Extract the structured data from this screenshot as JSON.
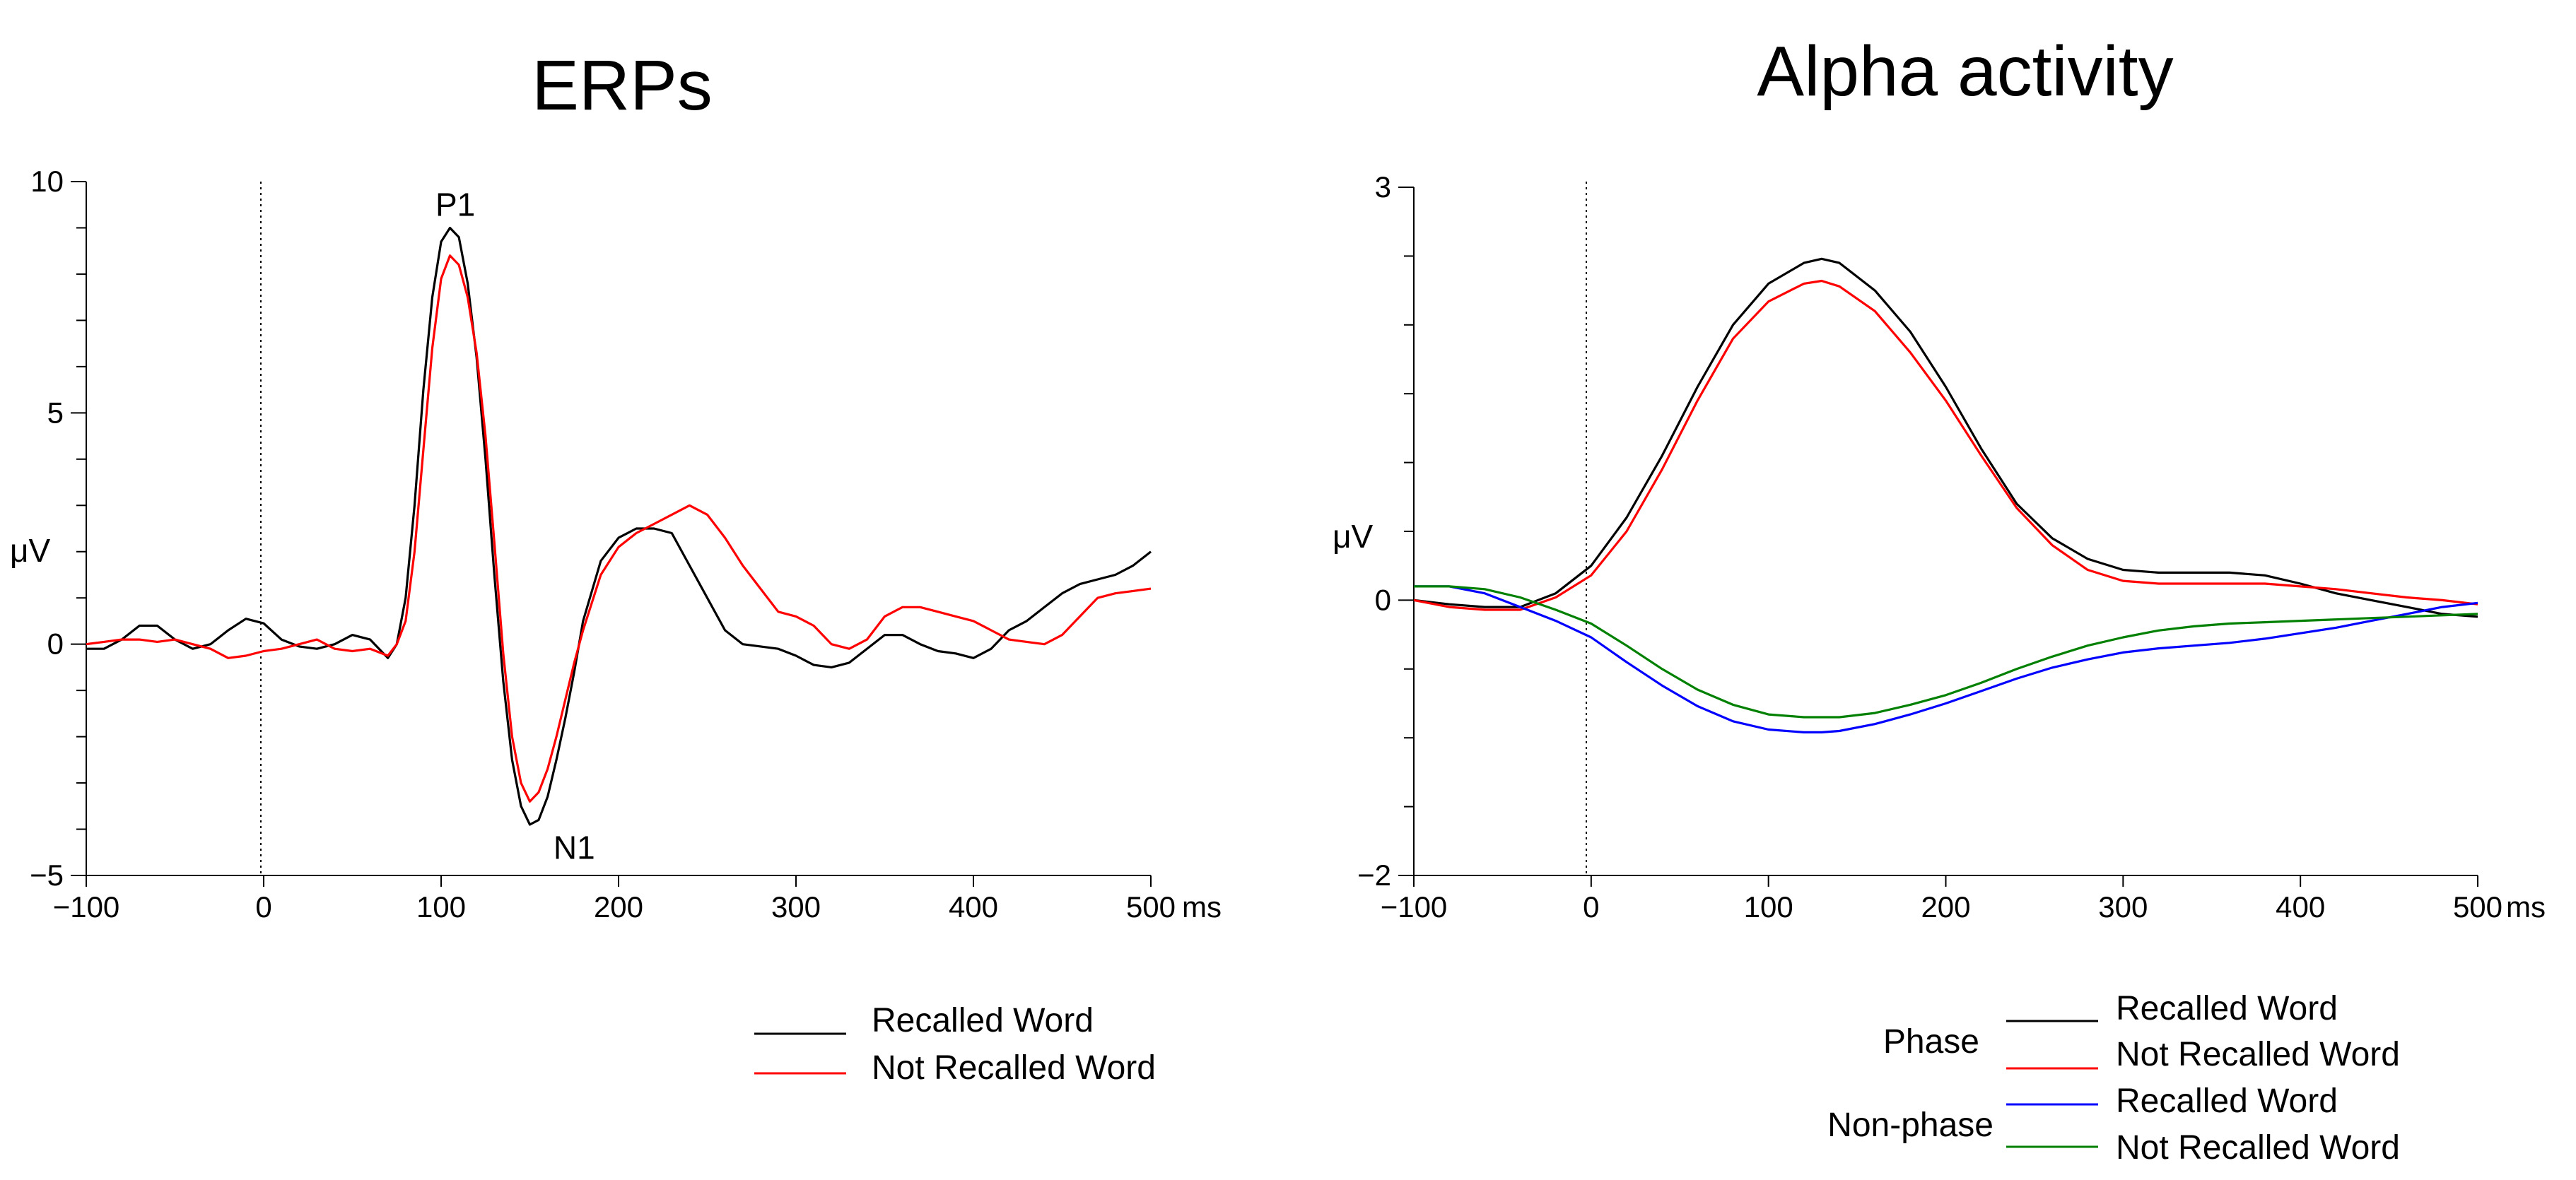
{
  "chart_data": [
    {
      "type": "line",
      "title": "ERPs",
      "ylabel": "μV",
      "x_unit": "ms",
      "xlim": [
        -100,
        500
      ],
      "ylim": [
        -5,
        10
      ],
      "x_ticks": [
        -100,
        0,
        100,
        200,
        300,
        400,
        500
      ],
      "x_tick_labels": [
        "−100",
        "0",
        "100",
        "200",
        "300",
        "400",
        "500"
      ],
      "y_ticks": [
        -5,
        0,
        5,
        10
      ],
      "y_tick_labels": [
        "−5",
        "0",
        "5",
        "10"
      ],
      "onset_line_x": 0,
      "annotations": [
        {
          "text": "P1",
          "x": 108,
          "y": 9.5
        },
        {
          "text": "N1",
          "x": 175,
          "y": -4.4
        }
      ],
      "legend_position": "bottom-center",
      "series": [
        {
          "name": "Recalled Word",
          "color": "#000000",
          "x": [
            -100,
            -90,
            -80,
            -70,
            -60,
            -50,
            -40,
            -30,
            -20,
            -10,
            0,
            10,
            20,
            30,
            40,
            50,
            60,
            70,
            75,
            80,
            85,
            90,
            95,
            100,
            105,
            110,
            115,
            120,
            125,
            130,
            135,
            140,
            145,
            150,
            155,
            160,
            165,
            170,
            175,
            180,
            190,
            200,
            210,
            220,
            230,
            240,
            250,
            260,
            270,
            280,
            290,
            300,
            310,
            320,
            330,
            340,
            350,
            360,
            370,
            380,
            390,
            400,
            410,
            420,
            430,
            440,
            450,
            460,
            470,
            480,
            490,
            500
          ],
          "y": [
            -0.1,
            -0.1,
            0.1,
            0.4,
            0.4,
            0.1,
            -0.1,
            0.0,
            0.3,
            0.55,
            0.45,
            0.1,
            -0.05,
            -0.1,
            0.0,
            0.2,
            0.1,
            -0.3,
            0.0,
            1.0,
            3.0,
            5.5,
            7.5,
            8.7,
            9.0,
            8.8,
            7.8,
            6.2,
            4.0,
            1.5,
            -0.8,
            -2.5,
            -3.5,
            -3.9,
            -3.8,
            -3.3,
            -2.5,
            -1.6,
            -0.6,
            0.5,
            1.8,
            2.3,
            2.5,
            2.5,
            2.4,
            1.7,
            1.0,
            0.3,
            0.0,
            -0.05,
            -0.1,
            -0.25,
            -0.45,
            -0.5,
            -0.4,
            -0.1,
            0.2,
            0.2,
            0.0,
            -0.15,
            -0.2,
            -0.3,
            -0.1,
            0.3,
            0.5,
            0.8,
            1.1,
            1.3,
            1.4,
            1.5,
            1.7,
            2.0
          ]
        },
        {
          "name": "Not Recalled Word",
          "color": "#ff0000",
          "x": [
            -100,
            -90,
            -80,
            -70,
            -60,
            -50,
            -40,
            -30,
            -20,
            -10,
            0,
            10,
            20,
            30,
            40,
            50,
            60,
            70,
            75,
            80,
            85,
            90,
            95,
            100,
            105,
            110,
            115,
            120,
            125,
            130,
            135,
            140,
            145,
            150,
            155,
            160,
            165,
            170,
            175,
            180,
            190,
            200,
            210,
            220,
            230,
            240,
            250,
            260,
            270,
            280,
            290,
            300,
            310,
            320,
            330,
            340,
            350,
            360,
            370,
            380,
            390,
            400,
            410,
            420,
            430,
            440,
            450,
            460,
            470,
            480,
            490,
            500
          ],
          "y": [
            0.0,
            0.05,
            0.1,
            0.1,
            0.05,
            0.1,
            0.0,
            -0.1,
            -0.3,
            -0.25,
            -0.15,
            -0.1,
            0.0,
            0.1,
            -0.1,
            -0.15,
            -0.1,
            -0.25,
            0.0,
            0.5,
            2.0,
            4.2,
            6.4,
            7.9,
            8.4,
            8.2,
            7.5,
            6.3,
            4.5,
            2.2,
            -0.2,
            -2.0,
            -3.0,
            -3.4,
            -3.2,
            -2.7,
            -2.0,
            -1.2,
            -0.4,
            0.3,
            1.5,
            2.1,
            2.4,
            2.6,
            2.8,
            3.0,
            2.8,
            2.3,
            1.7,
            1.2,
            0.7,
            0.6,
            0.4,
            0.0,
            -0.1,
            0.1,
            0.6,
            0.8,
            0.8,
            0.7,
            0.6,
            0.5,
            0.3,
            0.1,
            0.05,
            0.0,
            0.2,
            0.6,
            1.0,
            1.1,
            1.15,
            1.2
          ]
        }
      ]
    },
    {
      "type": "line",
      "title": "Alpha activity",
      "ylabel": "μV",
      "x_unit": "ms",
      "xlim": [
        -100,
        500
      ],
      "ylim": [
        -2,
        3
      ],
      "x_ticks": [
        -100,
        0,
        100,
        200,
        300,
        400,
        500
      ],
      "x_tick_labels": [
        "−100",
        "0",
        "100",
        "200",
        "300",
        "400",
        "500"
      ],
      "y_ticks": [
        -2,
        0,
        3
      ],
      "y_tick_labels": [
        "−2",
        "0",
        "3"
      ],
      "onset_line_x": 0,
      "legend_position": "bottom-right",
      "legend_groups": [
        "Phase",
        "Non-phase"
      ],
      "series": [
        {
          "name": "Recalled Word",
          "group": "Phase",
          "color": "#000000",
          "x": [
            -100,
            -80,
            -60,
            -40,
            -20,
            0,
            20,
            40,
            60,
            80,
            100,
            120,
            130,
            140,
            160,
            180,
            200,
            220,
            240,
            260,
            280,
            300,
            320,
            340,
            360,
            380,
            400,
            420,
            440,
            460,
            480,
            500
          ],
          "y": [
            0.0,
            -0.03,
            -0.05,
            -0.05,
            0.05,
            0.25,
            0.6,
            1.05,
            1.55,
            2.0,
            2.3,
            2.45,
            2.48,
            2.45,
            2.25,
            1.95,
            1.55,
            1.1,
            0.7,
            0.45,
            0.3,
            0.22,
            0.2,
            0.2,
            0.2,
            0.18,
            0.12,
            0.05,
            0.0,
            -0.05,
            -0.1,
            -0.12
          ]
        },
        {
          "name": "Not Recalled Word",
          "group": "Phase",
          "color": "#ff0000",
          "x": [
            -100,
            -80,
            -60,
            -40,
            -20,
            0,
            20,
            40,
            60,
            80,
            100,
            120,
            130,
            140,
            160,
            180,
            200,
            220,
            240,
            260,
            280,
            300,
            320,
            340,
            360,
            380,
            400,
            420,
            440,
            460,
            480,
            500
          ],
          "y": [
            0.0,
            -0.05,
            -0.07,
            -0.07,
            0.02,
            0.18,
            0.5,
            0.95,
            1.45,
            1.9,
            2.17,
            2.3,
            2.32,
            2.28,
            2.1,
            1.8,
            1.45,
            1.05,
            0.67,
            0.4,
            0.22,
            0.14,
            0.12,
            0.12,
            0.12,
            0.12,
            0.1,
            0.08,
            0.05,
            0.02,
            0.0,
            -0.03
          ]
        },
        {
          "name": "Recalled Word",
          "group": "Non-phase",
          "color": "#0000ff",
          "x": [
            -100,
            -80,
            -60,
            -40,
            -20,
            0,
            20,
            40,
            60,
            80,
            100,
            120,
            130,
            140,
            160,
            180,
            200,
            220,
            240,
            260,
            280,
            300,
            320,
            340,
            360,
            380,
            400,
            420,
            440,
            460,
            480,
            500
          ],
          "y": [
            0.1,
            0.1,
            0.05,
            -0.05,
            -0.15,
            -0.27,
            -0.45,
            -0.62,
            -0.77,
            -0.88,
            -0.94,
            -0.96,
            -0.96,
            -0.95,
            -0.9,
            -0.83,
            -0.75,
            -0.66,
            -0.57,
            -0.49,
            -0.43,
            -0.38,
            -0.35,
            -0.33,
            -0.31,
            -0.28,
            -0.24,
            -0.2,
            -0.15,
            -0.1,
            -0.05,
            -0.02
          ]
        },
        {
          "name": "Not Recalled Word",
          "group": "Non-phase",
          "color": "#008000",
          "x": [
            -100,
            -80,
            -60,
            -40,
            -20,
            0,
            20,
            40,
            60,
            80,
            100,
            120,
            130,
            140,
            160,
            180,
            200,
            220,
            240,
            260,
            280,
            300,
            320,
            340,
            360,
            380,
            400,
            420,
            440,
            460,
            480,
            500
          ],
          "y": [
            0.1,
            0.1,
            0.08,
            0.02,
            -0.07,
            -0.17,
            -0.33,
            -0.5,
            -0.65,
            -0.76,
            -0.83,
            -0.85,
            -0.85,
            -0.85,
            -0.82,
            -0.76,
            -0.69,
            -0.6,
            -0.5,
            -0.41,
            -0.33,
            -0.27,
            -0.22,
            -0.19,
            -0.17,
            -0.16,
            -0.15,
            -0.14,
            -0.13,
            -0.12,
            -0.11,
            -0.1
          ]
        }
      ]
    }
  ]
}
